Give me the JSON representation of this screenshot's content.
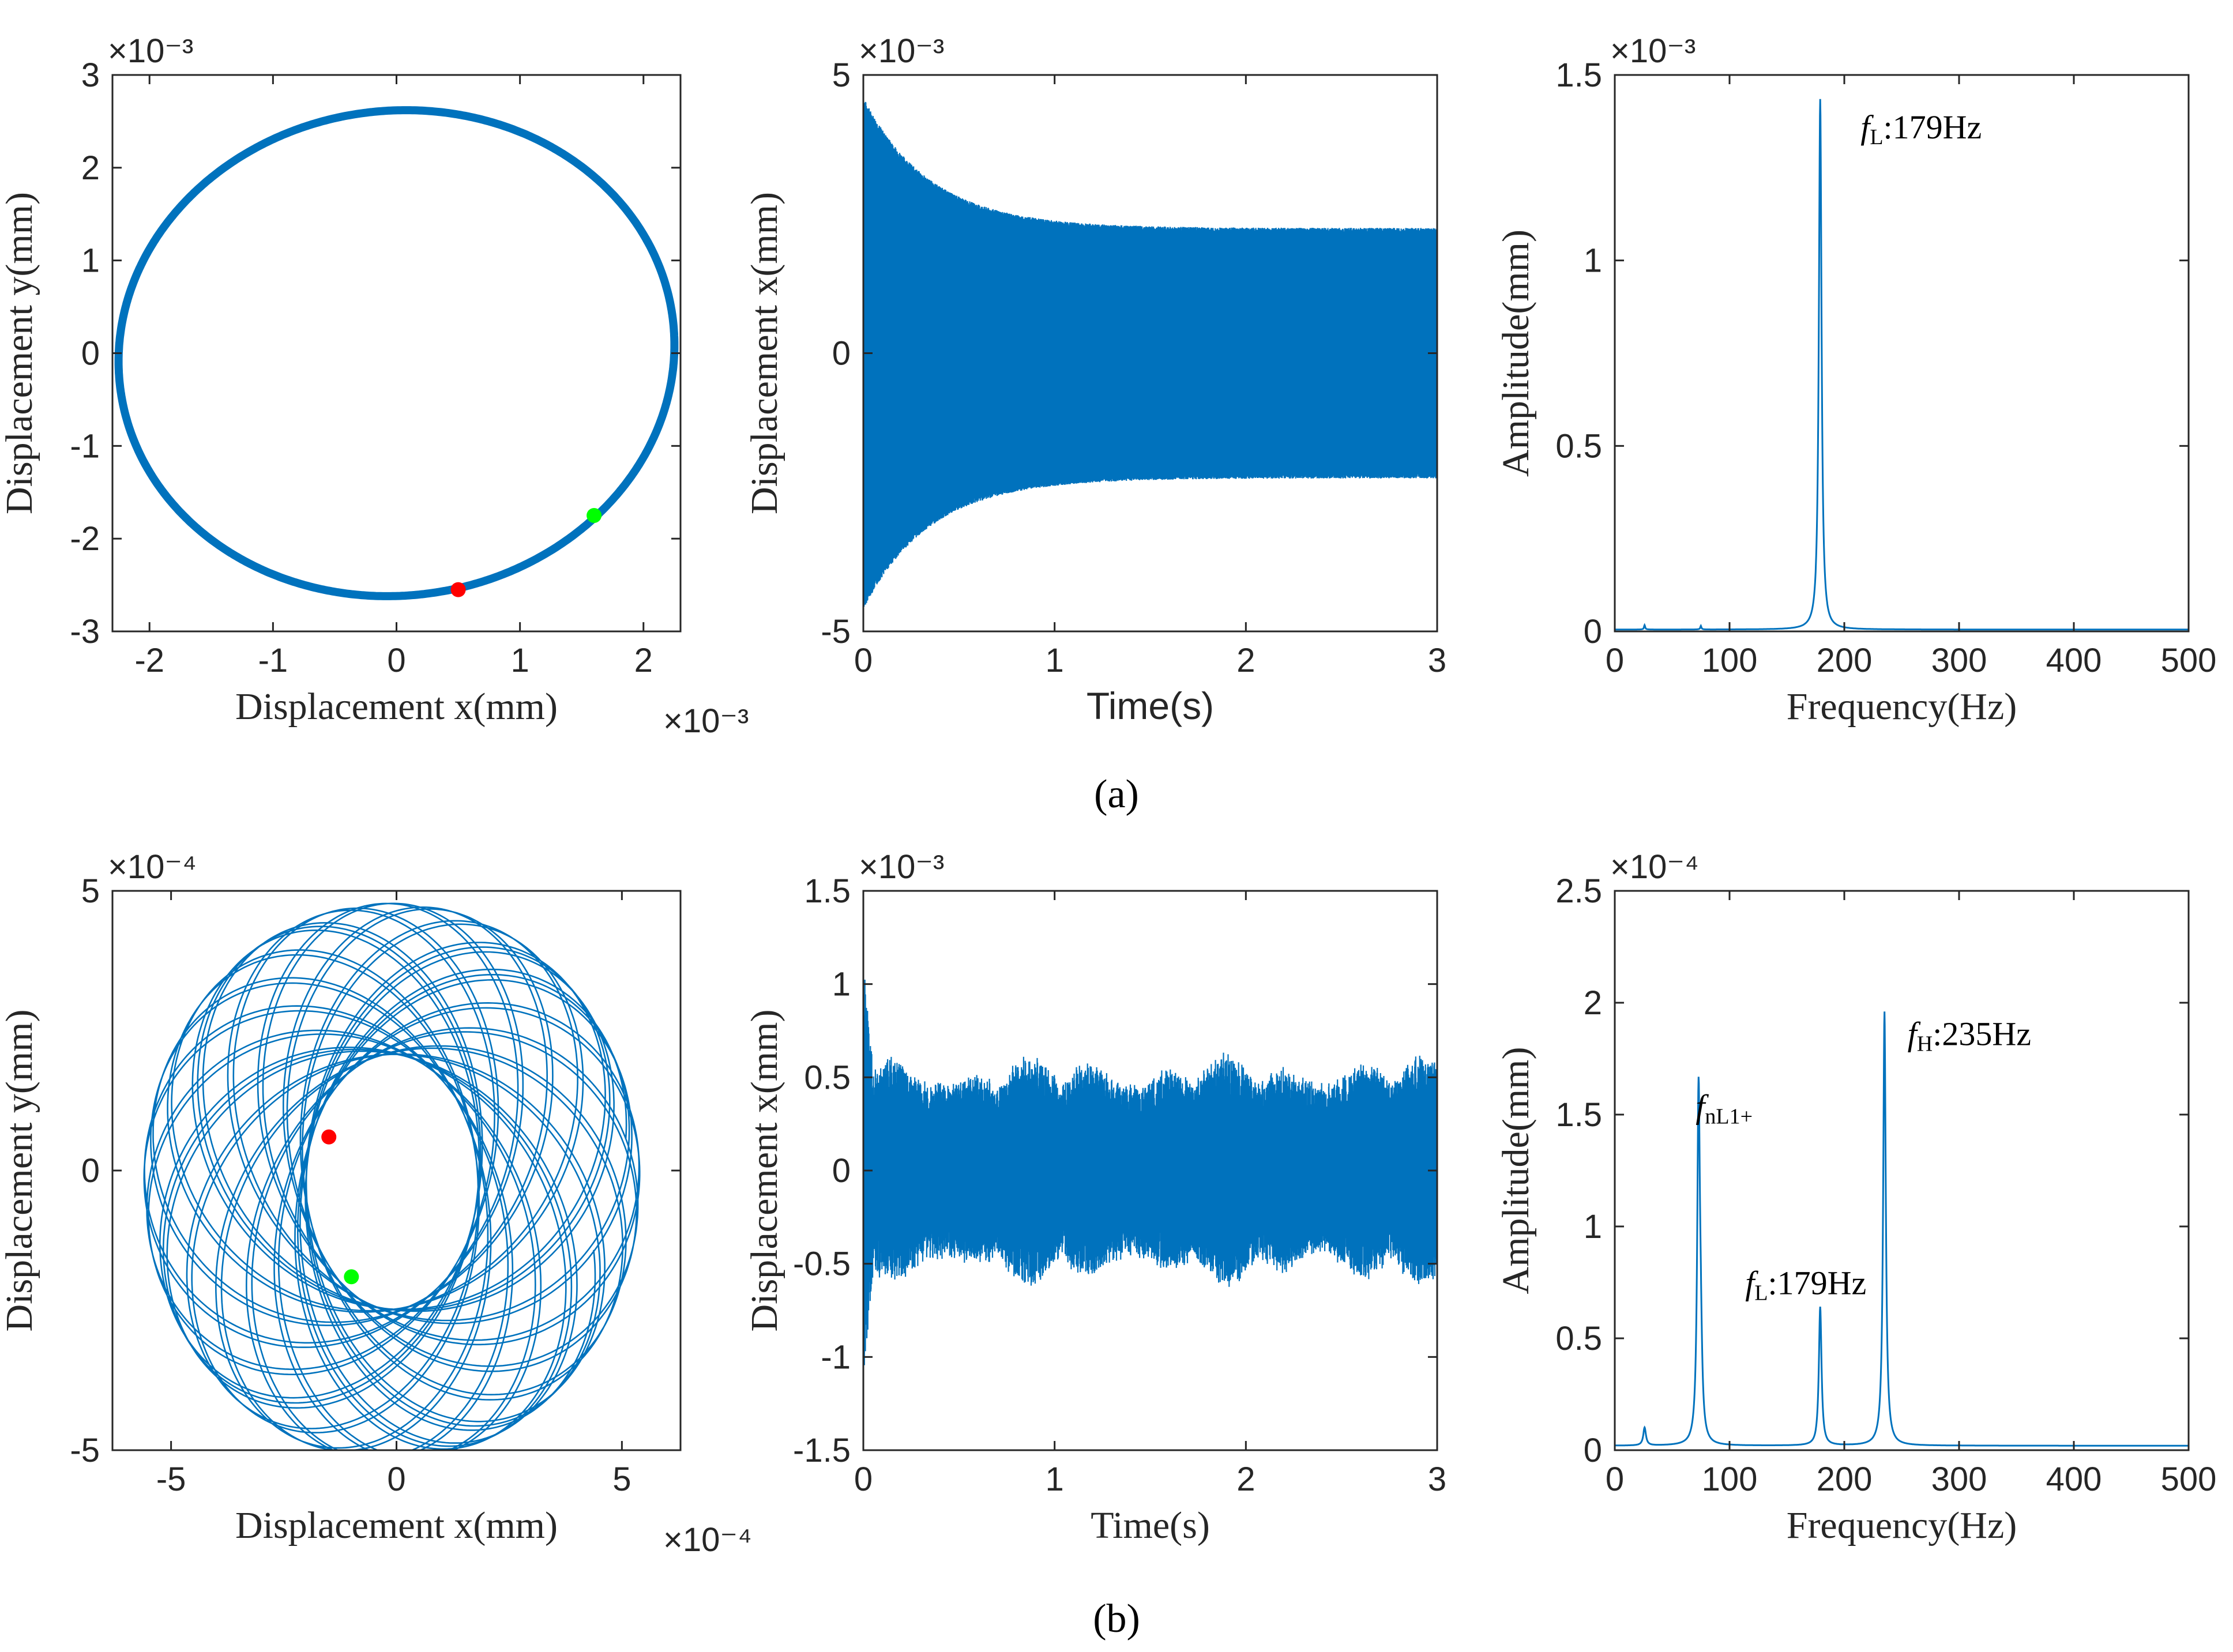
{
  "figure": {
    "panel_labels": {
      "a": "(a)",
      "b": "(b)"
    },
    "colors": {
      "series": "#0072BD",
      "marker_red": "#FF0000",
      "marker_green": "#00FF00",
      "axes": "#262626"
    }
  },
  "chart_data": [
    {
      "id": "a1",
      "type": "line",
      "title": "",
      "xlabel": "Displacement x(mm)",
      "ylabel": "Displacement y(mm)",
      "x_exponent": "×10⁻³",
      "y_exponent": "×10⁻³",
      "xlim": [
        -2.3,
        2.3
      ],
      "ylim": [
        -3,
        3
      ],
      "xticks": [
        -2,
        -1,
        0,
        1,
        2
      ],
      "yticks": [
        -3,
        -2,
        -1,
        0,
        1,
        2,
        3
      ],
      "xticklabels": [
        "-2",
        "-1",
        "0",
        "1",
        "2"
      ],
      "yticklabels": [
        "-3",
        "-2",
        "-1",
        "0",
        "1",
        "2",
        "3"
      ],
      "series": [
        {
          "name": "orbit",
          "shape": "ellipse",
          "center": [
            0,
            0
          ],
          "x_amplitude": 2.25,
          "y_amplitude": 2.62
        }
      ],
      "markers": [
        {
          "name": "start",
          "color": "#FF0000",
          "x": 0.5,
          "y": -2.55
        },
        {
          "name": "end",
          "color": "#00FF00",
          "x": 1.6,
          "y": -1.75
        }
      ]
    },
    {
      "id": "a2",
      "type": "line",
      "xlabel": "Time(s)",
      "ylabel": "Displacement x(mm)",
      "y_exponent": "×10⁻³",
      "xlim": [
        0,
        3
      ],
      "ylim": [
        -5,
        5
      ],
      "xticks": [
        0,
        1,
        2,
        3
      ],
      "yticks": [
        -5,
        0,
        5
      ],
      "xticklabels": [
        "0",
        "1",
        "2",
        "3"
      ],
      "yticklabels": [
        "-5",
        "0",
        "5"
      ],
      "series": [
        {
          "name": "x(t)",
          "initial_amplitude": 4.6,
          "steady_amplitude": 2.25,
          "decay_time_s": 0.35,
          "frequency_hz": 179
        }
      ]
    },
    {
      "id": "a3",
      "type": "line",
      "xlabel": "Frequency(Hz)",
      "ylabel": "Amplitude(mm)",
      "y_exponent": "×10⁻³",
      "xlim": [
        0,
        500
      ],
      "ylim": [
        0,
        1.5
      ],
      "xticks": [
        0,
        100,
        200,
        300,
        400,
        500
      ],
      "yticks": [
        0,
        0.5,
        1,
        1.5
      ],
      "xticklabels": [
        "0",
        "100",
        "200",
        "300",
        "400",
        "500"
      ],
      "yticklabels": [
        "0",
        "0.5",
        "1",
        "1.5"
      ],
      "series": [
        {
          "name": "spectrum",
          "peaks": [
            {
              "freq": 179,
              "amp": 1.43
            },
            {
              "freq": 26,
              "amp": 0.012
            },
            {
              "freq": 75,
              "amp": 0.01
            }
          ],
          "baseline": 0.005
        }
      ],
      "annotations": [
        {
          "italic": "f",
          "sub": "L",
          "text": ":179Hz",
          "x": 179,
          "y": 1.43
        }
      ]
    },
    {
      "id": "b1",
      "type": "line",
      "xlabel": "Displacement x(mm)",
      "ylabel": "Displacement y(mm)",
      "x_exponent": "×10⁻⁴",
      "y_exponent": "×10⁻⁴",
      "xlim": [
        -6.3,
        6.3
      ],
      "ylim": [
        -5,
        5
      ],
      "xticks": [
        -5,
        0,
        5
      ],
      "yticks": [
        -5,
        0,
        5
      ],
      "xticklabels": [
        "-5",
        "0",
        "5"
      ],
      "yticklabels": [
        "-5",
        "0",
        "5"
      ],
      "series": [
        {
          "name": "orbit",
          "shape": "quasi-periodic loops",
          "loop_radius": 3.7,
          "precession_radius": 1.8,
          "freq_high_hz": 235,
          "freq_low_hz": 73.6
        }
      ],
      "markers": [
        {
          "name": "start",
          "color": "#FF0000",
          "x": -1.5,
          "y": 0.6
        },
        {
          "name": "end",
          "color": "#00FF00",
          "x": -1.0,
          "y": -1.9
        }
      ]
    },
    {
      "id": "b2",
      "type": "line",
      "xlabel": "Time(s)",
      "ylabel": "Displacement x(mm)",
      "y_exponent": "×10⁻³",
      "xlim": [
        0,
        3
      ],
      "ylim": [
        -1.5,
        1.5
      ],
      "xticks": [
        0,
        1,
        2,
        3
      ],
      "yticks": [
        -1.5,
        -1,
        -0.5,
        0,
        0.5,
        1,
        1.5
      ],
      "xticklabels": [
        "0",
        "1",
        "2",
        "3"
      ],
      "yticklabels": [
        "-1.5",
        "-1",
        "-0.5",
        "0",
        "0.5",
        "1",
        "1.5"
      ],
      "series": [
        {
          "name": "x(t)",
          "initial_amplitude": 1.12,
          "steady_amplitude": 0.58,
          "frequency_hz": 235
        }
      ]
    },
    {
      "id": "b3",
      "type": "line",
      "xlabel": "Frequency(Hz)",
      "ylabel": "Amplitude(mm)",
      "y_exponent": "×10⁻⁴",
      "xlim": [
        0,
        500
      ],
      "ylim": [
        0,
        2.5
      ],
      "xticks": [
        0,
        100,
        200,
        300,
        400,
        500
      ],
      "yticks": [
        0,
        0.5,
        1,
        1.5,
        2,
        2.5
      ],
      "xticklabels": [
        "0",
        "100",
        "200",
        "300",
        "400",
        "500"
      ],
      "yticklabels": [
        "0",
        "0.5",
        "1",
        "1.5",
        "2",
        "2.5"
      ],
      "series": [
        {
          "name": "spectrum",
          "peaks": [
            {
              "freq": 73,
              "amp": 1.55
            },
            {
              "freq": 75,
              "amp": 0.3
            },
            {
              "freq": 179,
              "amp": 0.62
            },
            {
              "freq": 235,
              "amp": 1.94
            },
            {
              "freq": 26,
              "amp": 0.08
            }
          ],
          "baseline": 0.02
        }
      ],
      "annotations": [
        {
          "italic": "f",
          "sub": "nL1+",
          "text": "",
          "x": 73,
          "y": 1.55
        },
        {
          "italic": "f",
          "sub": "L",
          "text": ":179Hz",
          "x": 179,
          "y": 0.62
        },
        {
          "italic": "f",
          "sub": "H",
          "text": ":235Hz",
          "x": 235,
          "y": 1.94
        }
      ]
    }
  ]
}
